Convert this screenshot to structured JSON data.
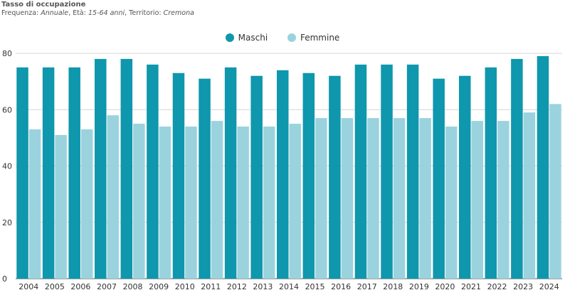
{
  "chart_data": {
    "type": "bar",
    "title": "Tasso di occupazione",
    "subtitle": {
      "frequency_label": "Frequenza:",
      "frequency": "Annuale",
      "age_label": "Età:",
      "age": "15-64 anni",
      "territory_label": "Territorio:",
      "territory": "Cremona"
    },
    "categories": [
      "2004",
      "2005",
      "2006",
      "2007",
      "2008",
      "2009",
      "2010",
      "2011",
      "2012",
      "2013",
      "2014",
      "2015",
      "2016",
      "2017",
      "2018",
      "2019",
      "2020",
      "2021",
      "2022",
      "2023",
      "2024"
    ],
    "series": [
      {
        "name": "Maschi",
        "color": "#0e97ad",
        "values": [
          75,
          75,
          75,
          78,
          78,
          76,
          73,
          71,
          75,
          72,
          74,
          73,
          72,
          76,
          76,
          76,
          71,
          72,
          75,
          78,
          79
        ]
      },
      {
        "name": "Femmine",
        "color": "#9ad3de",
        "values": [
          53,
          51,
          53,
          58,
          55,
          54,
          54,
          56,
          54,
          54,
          55,
          57,
          57,
          57,
          57,
          57,
          54,
          56,
          56,
          59,
          62
        ]
      }
    ],
    "ylim": [
      0,
      80
    ],
    "yticks": [
      0,
      20,
      40,
      60,
      80
    ],
    "grid": true,
    "legend": "top-center"
  }
}
